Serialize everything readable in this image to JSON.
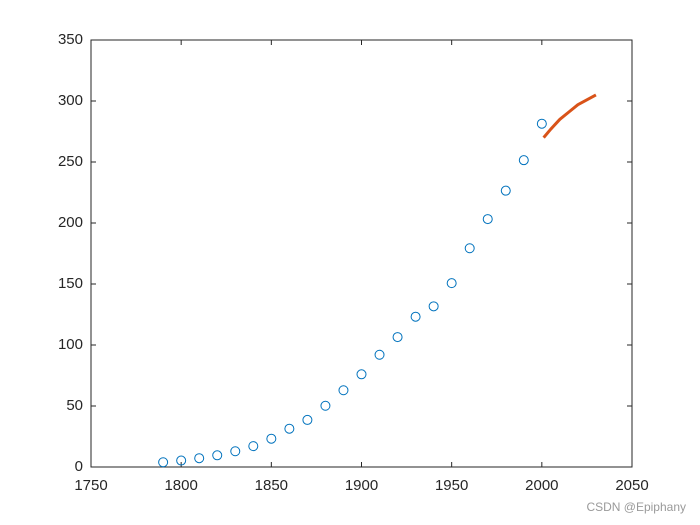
{
  "chart_data": {
    "type": "scatter",
    "series": [
      {
        "style": "marker",
        "color": "#0072BD",
        "x": [
          1790,
          1800,
          1810,
          1820,
          1830,
          1840,
          1850,
          1860,
          1870,
          1880,
          1890,
          1900,
          1910,
          1920,
          1930,
          1940,
          1950,
          1960,
          1970,
          1980,
          1990,
          2000
        ],
        "values": [
          3.9,
          5.3,
          7.2,
          9.6,
          12.9,
          17.1,
          23.2,
          31.4,
          38.6,
          50.2,
          62.9,
          76.0,
          92.0,
          106.5,
          123.2,
          131.7,
          150.7,
          179.3,
          203.2,
          226.5,
          251.5,
          281.4
        ]
      },
      {
        "style": "line",
        "color": "#D95319",
        "x": [
          2001,
          2005,
          2010,
          2015,
          2020,
          2025,
          2030
        ],
        "values": [
          270,
          277,
          285,
          291,
          297,
          301,
          305
        ]
      }
    ],
    "xlim": [
      1750,
      2050
    ],
    "xticks": [
      1750,
      1800,
      1850,
      1900,
      1950,
      2000,
      2050
    ],
    "ylim": [
      0,
      350
    ],
    "yticks": [
      0,
      50,
      100,
      150,
      200,
      250,
      300,
      350
    ],
    "grid": false
  },
  "watermark": "CSDN @Epiphany"
}
